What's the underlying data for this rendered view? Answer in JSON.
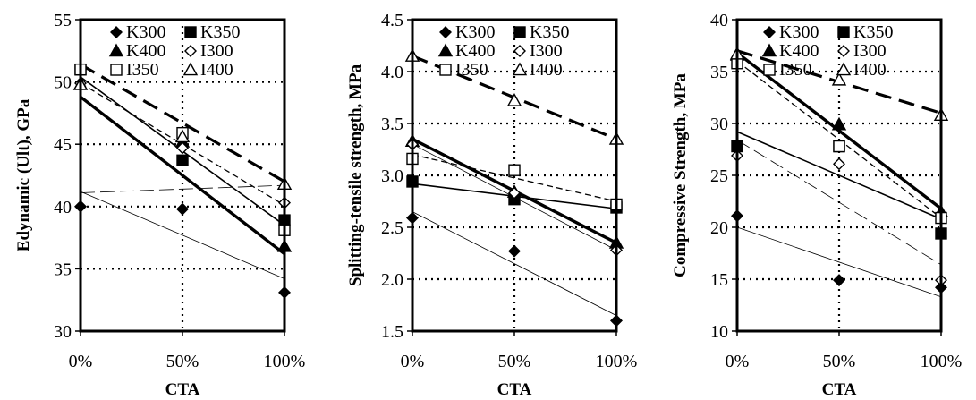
{
  "chart_data": [
    {
      "type": "scatter",
      "ylabel": "Edynamic (Ult), GPa",
      "xlabel": "CTA",
      "categories": [
        "0%",
        "50%",
        "100%"
      ],
      "ylim": [
        30,
        55
      ],
      "yticks": [
        "30",
        "35",
        "40",
        "45",
        "50",
        "55"
      ],
      "grid": "dotted",
      "legend_placement": "top-center",
      "series": [
        {
          "name": "K300",
          "marker": "diamond-filled",
          "values": [
            40.0,
            39.8,
            33.1
          ],
          "trend": [
            41.2,
            37.7,
            34.2
          ],
          "trend_style": "thin"
        },
        {
          "name": "K350",
          "marker": "square-filled",
          "values": [
            51.0,
            43.7,
            38.9
          ],
          "trend": [
            50.4,
            44.4,
            38.5
          ],
          "trend_style": "solid"
        },
        {
          "name": "K400",
          "marker": "triangle-filled",
          "values": [
            49.8,
            45.2,
            36.8
          ],
          "trend": [
            48.8,
            42.5,
            36.2
          ],
          "trend_style": "thick"
        },
        {
          "name": "I300",
          "marker": "diamond-open",
          "values": [
            49.9,
            44.7,
            40.3
          ],
          "trend": [
            49.9,
            45.0,
            40.1
          ],
          "trend_style": "dashed"
        },
        {
          "name": "I350",
          "marker": "square-open",
          "values": [
            51.0,
            45.9,
            38.1
          ],
          "trend": [
            41.1,
            41.4,
            41.7
          ],
          "trend_style": "long-dash-thin"
        },
        {
          "name": "I400",
          "marker": "triangle-open",
          "values": [
            49.8,
            45.6,
            41.8
          ],
          "trend": [
            51.4,
            46.7,
            42.0
          ],
          "trend_style": "long-dash-thick"
        }
      ]
    },
    {
      "type": "scatter",
      "ylabel": "Splitting-tensile strength, MPa",
      "xlabel": "CTA",
      "categories": [
        "0%",
        "50%",
        "100%"
      ],
      "ylim": [
        1.5,
        4.5
      ],
      "yticks": [
        "1.5",
        "2.0",
        "2.5",
        "3.0",
        "3.5",
        "4.0",
        "4.5"
      ],
      "grid": "dotted",
      "legend_placement": "top-center",
      "series": [
        {
          "name": "K300",
          "marker": "diamond-filled",
          "values": [
            2.59,
            2.27,
            1.6
          ],
          "trend": [
            2.65,
            2.15,
            1.65
          ],
          "trend_style": "thin"
        },
        {
          "name": "K350",
          "marker": "square-filled",
          "values": [
            2.94,
            2.77,
            2.69
          ],
          "trend": [
            2.92,
            2.8,
            2.68
          ],
          "trend_style": "solid"
        },
        {
          "name": "K400",
          "marker": "triangle-filled",
          "values": [
            3.33,
            2.84,
            2.35
          ],
          "trend": [
            3.35,
            2.85,
            2.35
          ],
          "trend_style": "thick"
        },
        {
          "name": "I300",
          "marker": "diamond-open",
          "values": [
            3.3,
            2.83,
            2.28
          ],
          "trend": [
            3.3,
            2.79,
            2.28
          ],
          "trend_style": "thin"
        },
        {
          "name": "I350",
          "marker": "square-open",
          "values": [
            3.16,
            3.05,
            2.72
          ],
          "trend": [
            3.2,
            2.98,
            2.75
          ],
          "trend_style": "dashed"
        },
        {
          "name": "I400",
          "marker": "triangle-open",
          "values": [
            4.15,
            3.72,
            3.35
          ],
          "trend": [
            4.15,
            3.75,
            3.35
          ],
          "trend_style": "long-dash-thick"
        }
      ]
    },
    {
      "type": "scatter",
      "ylabel": "Compressive Strength, MPa",
      "xlabel": "CTA",
      "categories": [
        "0%",
        "50%",
        "100%"
      ],
      "ylim": [
        10,
        40
      ],
      "yticks": [
        "10",
        "15",
        "20",
        "25",
        "30",
        "35",
        "40"
      ],
      "grid": "dotted",
      "legend_placement": "top-center",
      "series": [
        {
          "name": "K300",
          "marker": "diamond-filled",
          "values": [
            21.1,
            14.9,
            14.2
          ],
          "trend": [
            20.0,
            16.6,
            13.3
          ],
          "trend_style": "thin"
        },
        {
          "name": "K350",
          "marker": "square-filled",
          "values": [
            27.8,
            27.8,
            19.4
          ],
          "trend": [
            29.2,
            25.0,
            20.8
          ],
          "trend_style": "solid"
        },
        {
          "name": "K400",
          "marker": "triangle-filled",
          "values": [
            36.6,
            29.9,
            21.5
          ],
          "trend": [
            36.8,
            29.3,
            21.8
          ],
          "trend_style": "thick"
        },
        {
          "name": "I300",
          "marker": "diamond-open",
          "values": [
            26.9,
            26.1,
            14.9
          ],
          "trend": [
            28.4,
            22.4,
            16.4
          ],
          "trend_style": "long-dash-thin"
        },
        {
          "name": "I350",
          "marker": "square-open",
          "values": [
            35.8,
            27.8,
            20.9
          ],
          "trend": [
            36.0,
            28.5,
            20.9
          ],
          "trend_style": "dashed"
        },
        {
          "name": "I400",
          "marker": "triangle-open",
          "values": [
            36.7,
            34.2,
            30.8
          ],
          "trend": [
            37.0,
            34.0,
            31.0
          ],
          "trend_style": "long-dash-thick"
        }
      ]
    }
  ]
}
